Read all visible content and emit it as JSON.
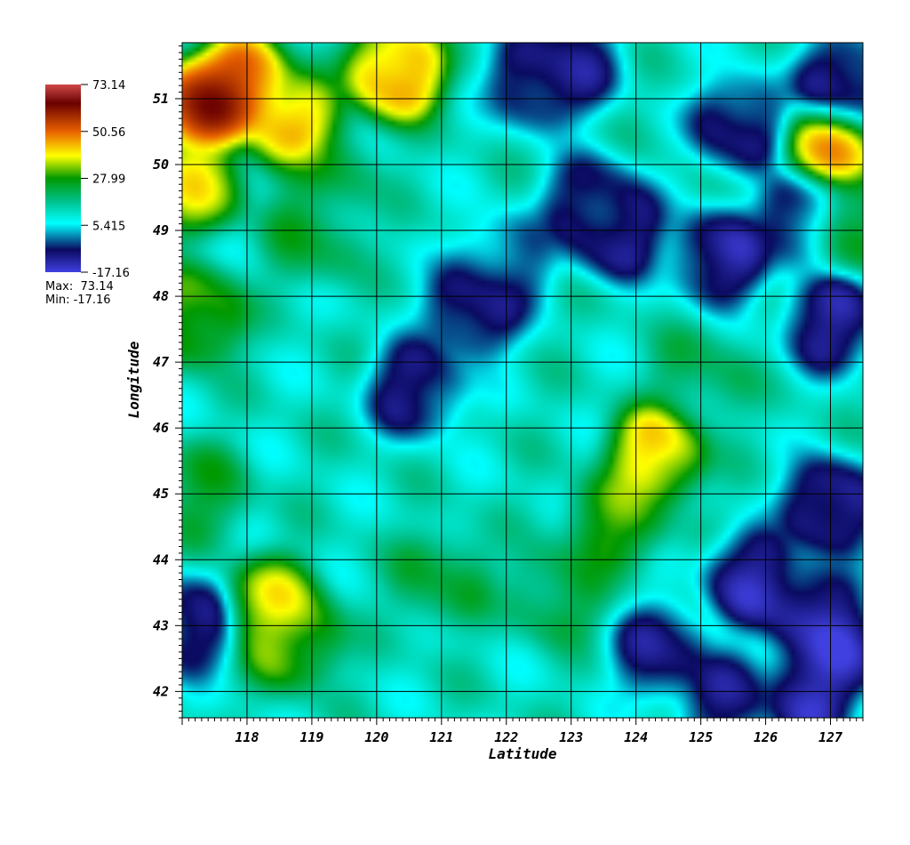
{
  "chart_data": {
    "type": "heatmap",
    "title": "",
    "xlabel": "Latitude",
    "ylabel": "Longitude",
    "xlim": [
      117.0,
      127.5
    ],
    "ylim": [
      41.6,
      51.85
    ],
    "x_ticks": [
      "118",
      "119",
      "120",
      "121",
      "122",
      "123",
      "124",
      "125",
      "126",
      "127"
    ],
    "y_ticks": [
      "42",
      "43",
      "44",
      "45",
      "46",
      "47",
      "48",
      "49",
      "50",
      "51"
    ],
    "x_tick_values": [
      118,
      119,
      120,
      121,
      122,
      123,
      124,
      125,
      126,
      127
    ],
    "y_tick_values": [
      42,
      43,
      44,
      45,
      46,
      47,
      48,
      49,
      50,
      51
    ],
    "grid": true,
    "colorbar": {
      "placement": "left",
      "max": 73.14,
      "min": -17.16,
      "labels": [
        "73.14",
        "50.56",
        "27.99",
        "5.415",
        "-17.16"
      ],
      "max_text": "Max:  73.14",
      "min_text": "Min: -17.16",
      "colors": [
        "#4040e0",
        "#0a0a60",
        "#00ffff",
        "#009900",
        "#ffff00",
        "#e86000",
        "#6a0000",
        "#d04848"
      ]
    },
    "features": [
      {
        "x": 117.9,
        "y": 51.2,
        "value": 60
      },
      {
        "x": 117.3,
        "y": 50.9,
        "value": 65
      },
      {
        "x": 120.3,
        "y": 51.4,
        "value": 52
      },
      {
        "x": 118.7,
        "y": 50.6,
        "value": 48
      },
      {
        "x": 117.2,
        "y": 49.7,
        "value": 40
      },
      {
        "x": 127.0,
        "y": 50.25,
        "value": 48
      },
      {
        "x": 127.3,
        "y": 49.1,
        "value": 32
      },
      {
        "x": 117.2,
        "y": 47.7,
        "value": 35
      },
      {
        "x": 124.3,
        "y": 45.6,
        "value": 45
      },
      {
        "x": 123.7,
        "y": 44.6,
        "value": 32
      },
      {
        "x": 125.0,
        "y": 46.8,
        "value": 22
      },
      {
        "x": 118.4,
        "y": 43.3,
        "value": 40
      },
      {
        "x": 118.7,
        "y": 42.8,
        "value": 35
      },
      {
        "x": 122.8,
        "y": 43.5,
        "value": 25
      },
      {
        "x": 121.0,
        "y": 43.7,
        "value": 25
      },
      {
        "x": 117.3,
        "y": 45.0,
        "value": 25
      },
      {
        "x": 119.2,
        "y": 49.9,
        "value": 24
      },
      {
        "x": 119.0,
        "y": 48.9,
        "value": 24
      },
      {
        "x": 122.5,
        "y": 51.3,
        "value": -14
      },
      {
        "x": 123.0,
        "y": 51.5,
        "value": -10
      },
      {
        "x": 123.3,
        "y": 49.4,
        "value": -10
      },
      {
        "x": 123.7,
        "y": 49.0,
        "value": -14
      },
      {
        "x": 121.5,
        "y": 47.8,
        "value": -14
      },
      {
        "x": 120.6,
        "y": 46.6,
        "value": -12
      },
      {
        "x": 125.3,
        "y": 48.6,
        "value": -15
      },
      {
        "x": 125.6,
        "y": 50.6,
        "value": -12
      },
      {
        "x": 126.6,
        "y": 49.2,
        "value": -12
      },
      {
        "x": 127.2,
        "y": 51.2,
        "value": -15
      },
      {
        "x": 127.0,
        "y": 47.6,
        "value": -14
      },
      {
        "x": 127.0,
        "y": 44.8,
        "value": -17
      },
      {
        "x": 126.7,
        "y": 43.2,
        "value": -17
      },
      {
        "x": 127.1,
        "y": 42.6,
        "value": -16
      },
      {
        "x": 125.8,
        "y": 43.7,
        "value": -15
      },
      {
        "x": 124.4,
        "y": 42.6,
        "value": -12
      },
      {
        "x": 117.1,
        "y": 43.0,
        "value": -12
      },
      {
        "x": 125.4,
        "y": 41.9,
        "value": -10
      },
      {
        "x": 126.7,
        "y": 42.0,
        "value": -17
      },
      {
        "x": 122.0,
        "y": 48.5,
        "value": -5
      }
    ]
  }
}
